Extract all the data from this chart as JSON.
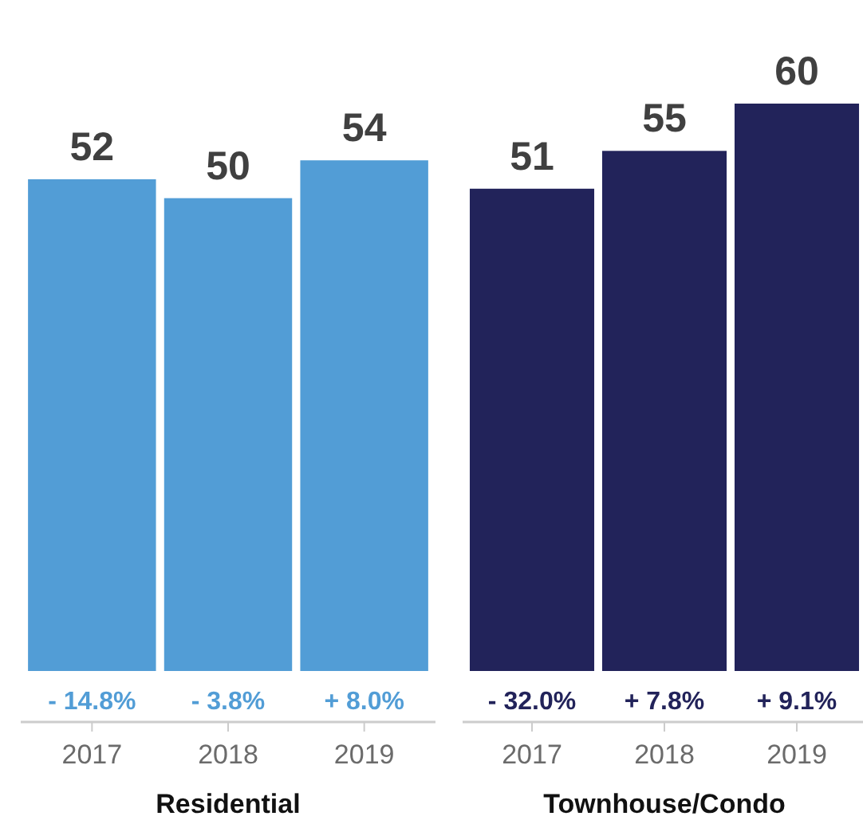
{
  "chart_data": [
    {
      "type": "bar",
      "xlabel": "Residential",
      "categories": [
        "2017",
        "2018",
        "2019"
      ],
      "values": [
        52,
        50,
        54
      ],
      "color": "#529dd6",
      "data_labels": true,
      "annotations": [
        "- 14.8%",
        "- 3.8%",
        "+ 8.0%"
      ]
    },
    {
      "type": "bar",
      "xlabel": "Townhouse/Condo",
      "categories": [
        "2017",
        "2018",
        "2019"
      ],
      "values": [
        51,
        55,
        60
      ],
      "color": "#22235a",
      "data_labels": true,
      "annotations": [
        "- 32.0%",
        "+ 7.8%",
        "+ 9.1%"
      ]
    }
  ]
}
